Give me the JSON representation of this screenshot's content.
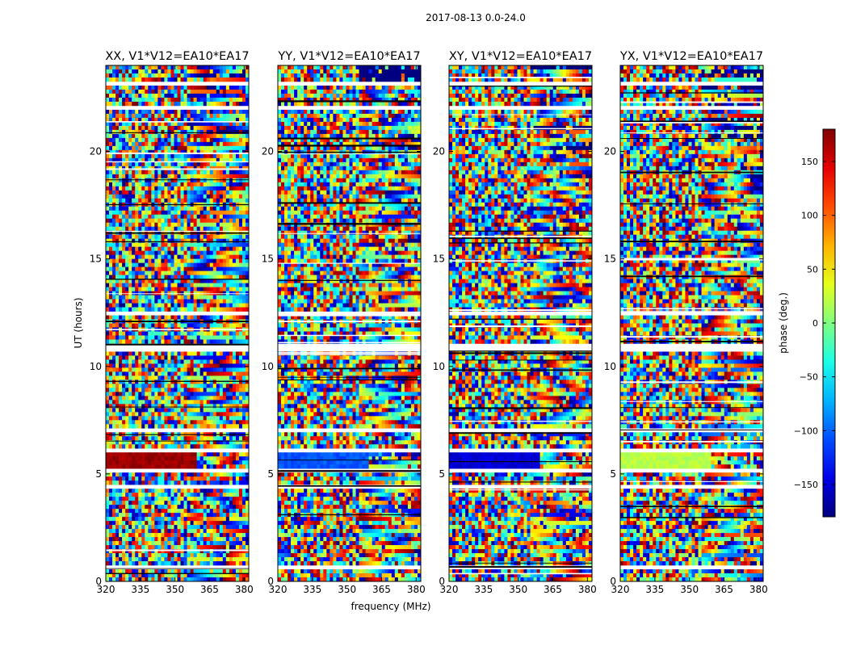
{
  "figure": {
    "suptitle": "2017-08-13 0.0-24.0",
    "xlabel": "frequency (MHz)",
    "ylabel": "UT (hours)"
  },
  "chart_data": {
    "type": "heatmap",
    "title": "2017-08-13 0.0-24.0",
    "xlabel": "frequency (MHz)",
    "ylabel": "UT (hours)",
    "xlim": [
      320,
      382
    ],
    "ylim": [
      0,
      24
    ],
    "xticks": [
      "320",
      "335",
      "350",
      "365",
      "380"
    ],
    "xtick_values": [
      320,
      335,
      350,
      365,
      380
    ],
    "yticks": [
      "0",
      "5",
      "10",
      "15",
      "20"
    ],
    "ytick_values": [
      0,
      5,
      10,
      15,
      20
    ],
    "panels": [
      {
        "title": "XX, V1*V12=EA10*EA17",
        "band_5h_phase": 170
      },
      {
        "title": "YY, V1*V12=EA10*EA17",
        "band_5h_phase": -105
      },
      {
        "title": "XY, V1*V12=EA10*EA17",
        "band_5h_phase": -150
      },
      {
        "title": "YX, V1*V12=EA10*EA17",
        "band_5h_phase": 20
      }
    ],
    "data_gaps_hours": [
      [
        0.55,
        0.7
      ],
      [
        4.4,
        4.55
      ],
      [
        5.0,
        5.2
      ],
      [
        5.95,
        6.15
      ],
      [
        7.0,
        7.1
      ],
      [
        10.7,
        11.0
      ],
      [
        12.4,
        12.5
      ],
      [
        16.8,
        16.9
      ],
      [
        22.0,
        22.1
      ],
      [
        23.1,
        23.2
      ]
    ],
    "colorbar": {
      "label": "phase (deg.)",
      "range": [
        -180,
        180
      ],
      "ticks": [
        "150",
        "100",
        "50",
        "0",
        "−50",
        "−100",
        "−150"
      ],
      "tick_values": [
        150,
        100,
        50,
        0,
        -50,
        -100,
        -150
      ],
      "colormap": "jet"
    }
  }
}
